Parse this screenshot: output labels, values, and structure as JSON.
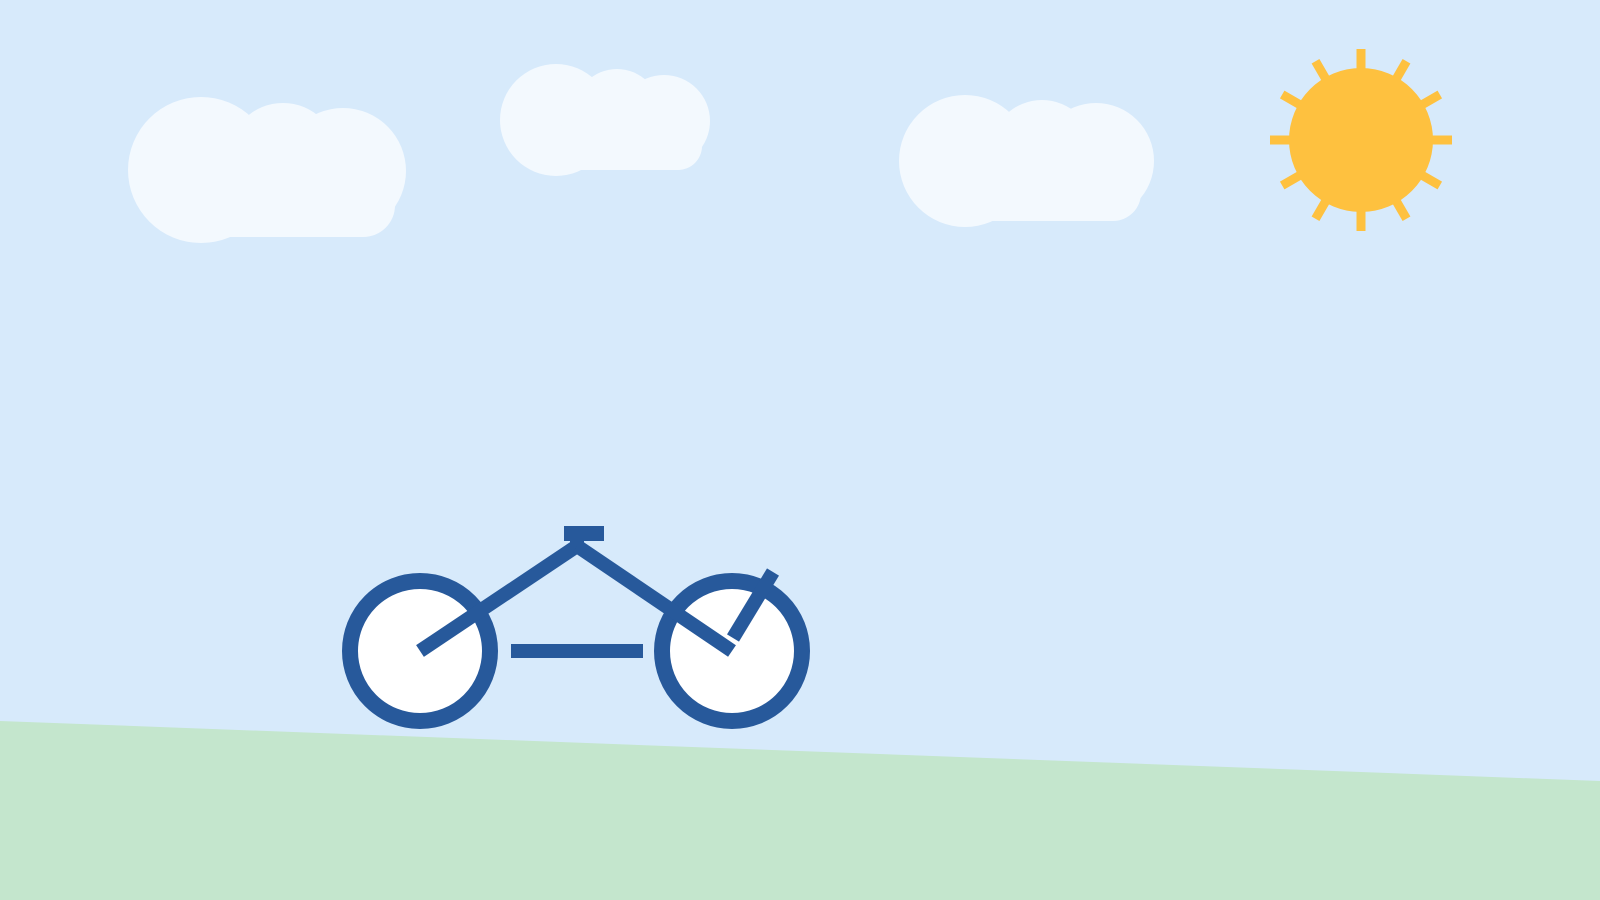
{
  "scene": {
    "sky_color": "#d7eafb",
    "ground_color": "#c4e6cd",
    "cloud_color": "#f3f9fe",
    "sun_color": "#fec13f",
    "bicycle_color": "#27599b",
    "wheel_fill_color": "#ffffff",
    "sun_rays": 12,
    "clouds": 3,
    "bicycle_wheels": 2
  }
}
